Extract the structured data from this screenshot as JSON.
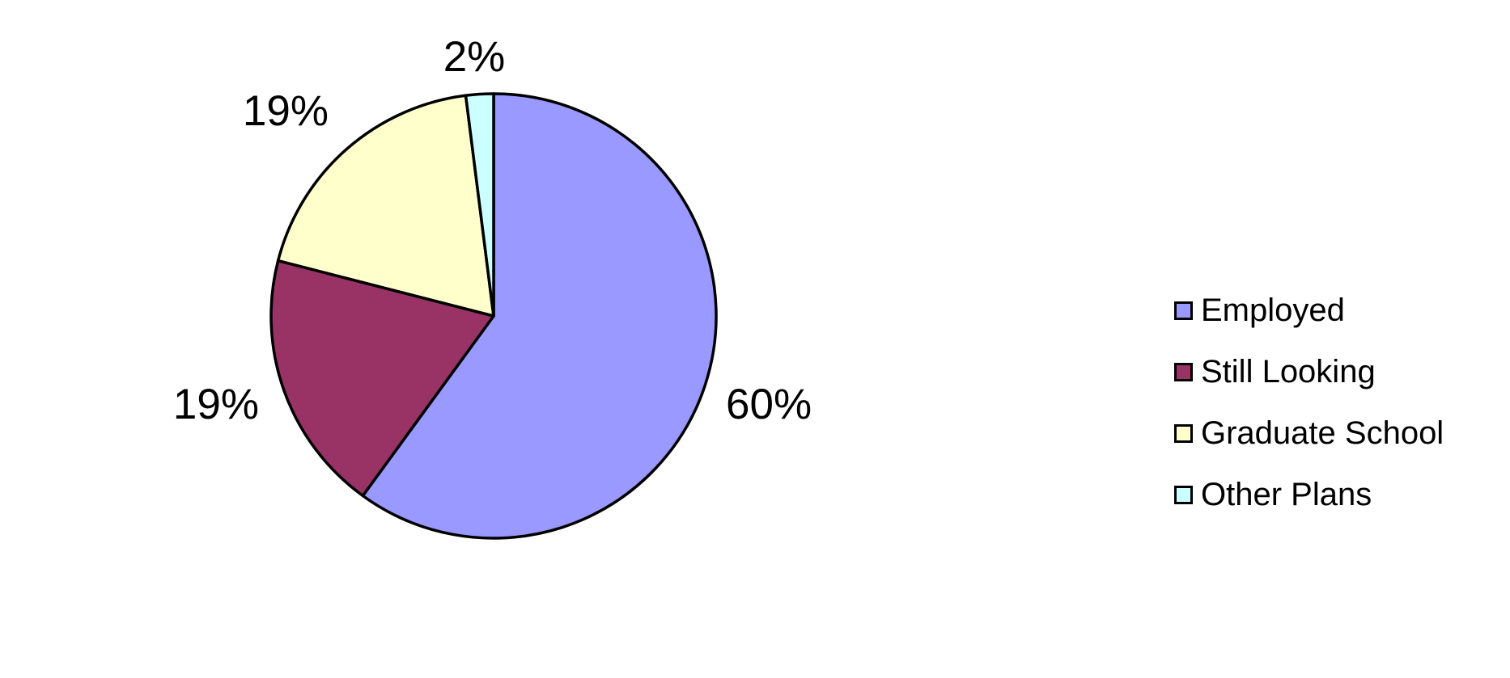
{
  "chart_data": {
    "type": "pie",
    "categories": [
      "Employed",
      "Still Looking",
      "Graduate School",
      "Other Plans"
    ],
    "values": [
      60,
      19,
      19,
      2
    ],
    "data_labels": [
      "60%",
      "19%",
      "19%",
      "2%"
    ],
    "colors": [
      "#9999FF",
      "#993366",
      "#FFFFCC",
      "#CCFFFF"
    ],
    "legend_position": "right",
    "start_angle": "top, clockwise"
  }
}
